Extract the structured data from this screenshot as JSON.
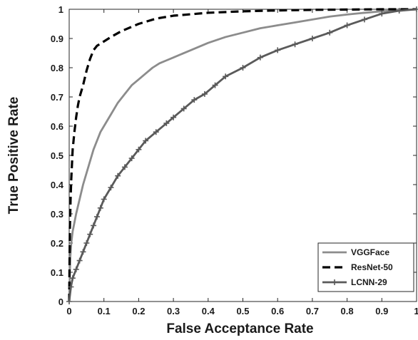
{
  "chart_data": {
    "type": "line",
    "title": "",
    "xlabel": "False Acceptance Rate",
    "ylabel": "True Positive Rate",
    "xlim": [
      0,
      1
    ],
    "ylim": [
      0,
      1
    ],
    "x_ticks": [
      "0",
      "0.1",
      "0.2",
      "0.3",
      "0.4",
      "0.5",
      "0.6",
      "0.7",
      "0.8",
      "0.9",
      "1"
    ],
    "y_ticks": [
      "0",
      "0.1",
      "0.2",
      "0.3",
      "0.4",
      "0.5",
      "0.6",
      "0.7",
      "0.8",
      "0.9",
      "1"
    ],
    "grid": false,
    "legend_position": "bottom-right",
    "series": [
      {
        "name": "VGGFace",
        "color": "#8c8c8c",
        "line_style": "solid",
        "marker": "none",
        "x": [
          0,
          0.003,
          0.006,
          0.01,
          0.015,
          0.02,
          0.03,
          0.04,
          0.05,
          0.06,
          0.07,
          0.08,
          0.09,
          0.1,
          0.12,
          0.14,
          0.16,
          0.18,
          0.2,
          0.22,
          0.24,
          0.26,
          0.28,
          0.3,
          0.35,
          0.4,
          0.45,
          0.5,
          0.55,
          0.6,
          0.65,
          0.7,
          0.75,
          0.8,
          0.85,
          0.9,
          0.95,
          1.0
        ],
        "y": [
          0,
          0.15,
          0.2,
          0.24,
          0.27,
          0.3,
          0.35,
          0.4,
          0.44,
          0.48,
          0.52,
          0.55,
          0.58,
          0.6,
          0.64,
          0.68,
          0.71,
          0.74,
          0.76,
          0.78,
          0.8,
          0.815,
          0.825,
          0.835,
          0.86,
          0.885,
          0.905,
          0.92,
          0.935,
          0.945,
          0.955,
          0.965,
          0.975,
          0.982,
          0.988,
          0.993,
          0.997,
          1.0
        ]
      },
      {
        "name": "ResNet-50",
        "color": "#000000",
        "line_style": "dashed",
        "marker": "none",
        "x": [
          0,
          0.002,
          0.004,
          0.006,
          0.008,
          0.01,
          0.015,
          0.02,
          0.025,
          0.03,
          0.04,
          0.05,
          0.06,
          0.07,
          0.08,
          0.1,
          0.12,
          0.15,
          0.2,
          0.25,
          0.3,
          0.4,
          0.5,
          0.6,
          0.7,
          0.8,
          0.9,
          1.0
        ],
        "y": [
          0,
          0.25,
          0.35,
          0.42,
          0.47,
          0.52,
          0.58,
          0.63,
          0.67,
          0.7,
          0.74,
          0.79,
          0.83,
          0.86,
          0.875,
          0.89,
          0.905,
          0.925,
          0.95,
          0.968,
          0.978,
          0.988,
          0.993,
          0.996,
          0.998,
          0.999,
          1.0,
          1.0
        ]
      },
      {
        "name": "LCNN-29",
        "color": "#5a5a5a",
        "line_style": "solid",
        "marker": "plus",
        "x": [
          0,
          0.005,
          0.01,
          0.02,
          0.03,
          0.04,
          0.05,
          0.06,
          0.07,
          0.08,
          0.09,
          0.1,
          0.12,
          0.14,
          0.16,
          0.18,
          0.2,
          0.22,
          0.25,
          0.28,
          0.3,
          0.33,
          0.36,
          0.39,
          0.42,
          0.45,
          0.5,
          0.55,
          0.6,
          0.65,
          0.7,
          0.75,
          0.8,
          0.85,
          0.9,
          0.95,
          1.0
        ],
        "y": [
          0,
          0.05,
          0.08,
          0.11,
          0.14,
          0.17,
          0.2,
          0.23,
          0.26,
          0.29,
          0.32,
          0.35,
          0.39,
          0.43,
          0.46,
          0.49,
          0.52,
          0.55,
          0.58,
          0.61,
          0.63,
          0.66,
          0.69,
          0.71,
          0.74,
          0.77,
          0.8,
          0.835,
          0.86,
          0.88,
          0.9,
          0.92,
          0.945,
          0.965,
          0.985,
          0.995,
          1.0
        ]
      }
    ]
  }
}
